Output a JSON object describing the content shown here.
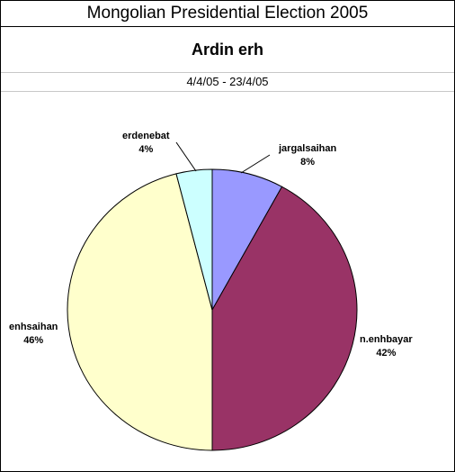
{
  "header": {
    "title": "Mongolian Presidential Election 2005",
    "subtitle": "Ardin erh",
    "date_range": "4/4/05 - 23/4/05"
  },
  "chart_data": {
    "type": "pie",
    "title": "Ardin erh",
    "slices": [
      {
        "label": "jargalsaihan",
        "value": 8,
        "display": "8%",
        "color": "#9999ff"
      },
      {
        "label": "n.enhbayar",
        "value": 42,
        "display": "42%",
        "color": "#993366"
      },
      {
        "label": "enhsaihan",
        "value": 46,
        "display": "46%",
        "color": "#ffffcc"
      },
      {
        "label": "erdenebat",
        "value": 4,
        "display": "4%",
        "color": "#ccffff"
      }
    ],
    "start_angle": "12 o'clock",
    "direction": "clockwise",
    "legend": "none"
  }
}
